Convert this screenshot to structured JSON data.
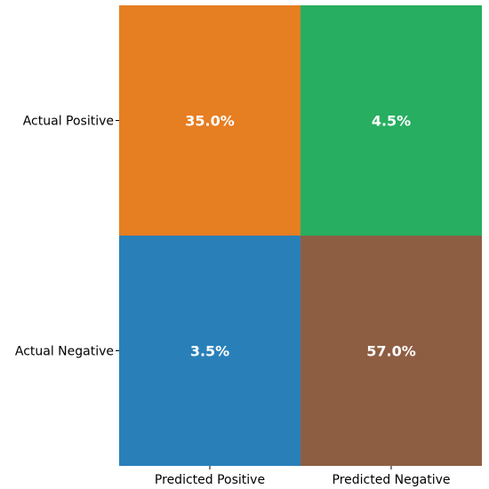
{
  "chart_data": {
    "type": "heatmap",
    "title": "",
    "xlabel": "",
    "ylabel": "",
    "columns": [
      "Predicted Positive",
      "Predicted Negative"
    ],
    "rows": [
      "Actual Positive",
      "Actual Negative"
    ],
    "cells": [
      [
        {
          "value": 35.0,
          "label": "35.0%",
          "color": "#e67e22"
        },
        {
          "value": 4.5,
          "label": "4.5%",
          "color": "#27ae60"
        }
      ],
      [
        {
          "value": 3.5,
          "label": "3.5%",
          "color": "#2980b9"
        },
        {
          "value": 57.0,
          "label": "57.0%",
          "color": "#8e5e43"
        }
      ]
    ],
    "value_label_color": "#ffffff",
    "tick_label_color": "#000000"
  }
}
